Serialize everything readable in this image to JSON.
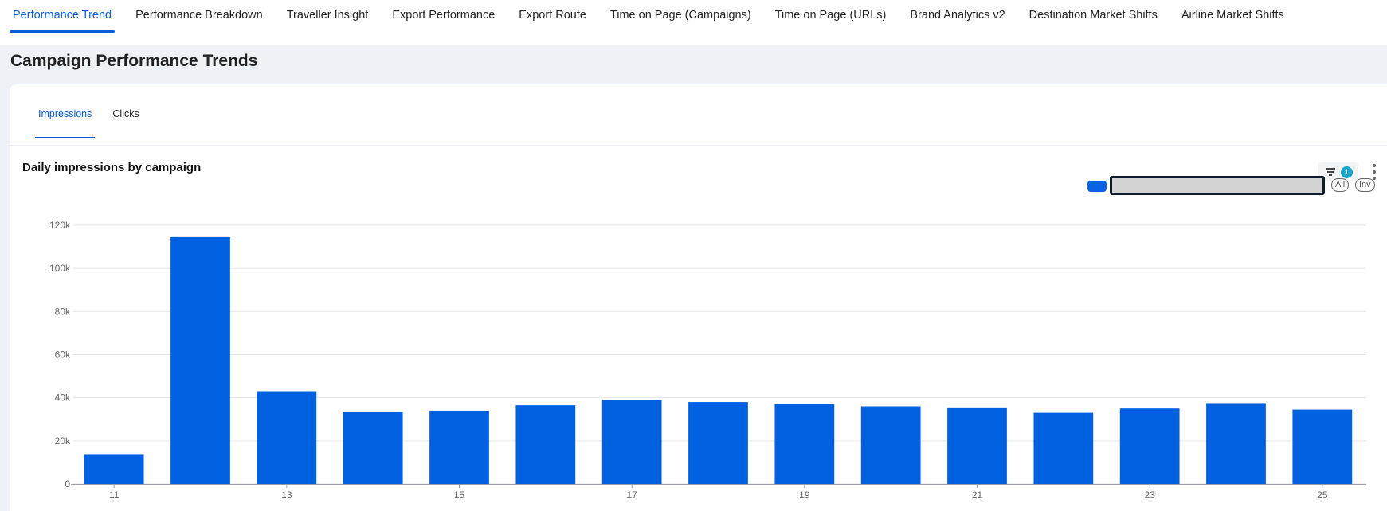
{
  "nav": {
    "tabs": [
      {
        "label": "Performance Trend",
        "active": true
      },
      {
        "label": "Performance Breakdown",
        "active": false
      },
      {
        "label": "Traveller Insight",
        "active": false
      },
      {
        "label": "Export Performance",
        "active": false
      },
      {
        "label": "Export Route",
        "active": false
      },
      {
        "label": "Time on Page (Campaigns)",
        "active": false
      },
      {
        "label": "Time on Page (URLs)",
        "active": false
      },
      {
        "label": "Brand Analytics v2",
        "active": false
      },
      {
        "label": "Destination Market Shifts",
        "active": false
      },
      {
        "label": "Airline Market Shifts",
        "active": false
      }
    ]
  },
  "page": {
    "title": "Campaign Performance Trends"
  },
  "subtabs": [
    {
      "label": "Impressions",
      "active": true
    },
    {
      "label": "Clicks",
      "active": false
    }
  ],
  "toolbar": {
    "filter_count": "1",
    "filter_icon": "filter-icon",
    "menu_icon": "kebab-menu-icon"
  },
  "legend": {
    "all_label": "All",
    "inv_label": "Inv",
    "swatch_color": "#0a63e2",
    "input_value": ""
  },
  "colors": {
    "accent": "#0a5bd8",
    "bar": "#0061e0",
    "badge": "#1aa3c9"
  },
  "chart_data": {
    "type": "bar",
    "title": "Daily impressions by campaign",
    "x": [
      11,
      12,
      13,
      14,
      15,
      16,
      17,
      18,
      19,
      20,
      21,
      22,
      23,
      24,
      25
    ],
    "x_tick_labels": [
      "11",
      "13",
      "15",
      "17",
      "19",
      "21",
      "23",
      "25"
    ],
    "series": [
      {
        "values": [
          13500,
          114500,
          43000,
          33500,
          34000,
          36500,
          39000,
          38000,
          37000,
          36000,
          35500,
          33000,
          35000,
          37500,
          34500
        ]
      }
    ],
    "ylim": [
      0,
      120000
    ],
    "y_ticks": [
      0,
      20000,
      40000,
      60000,
      80000,
      100000,
      120000
    ],
    "y_tick_labels": [
      "0",
      "20k",
      "40k",
      "60k",
      "80k",
      "100k",
      "120k"
    ],
    "grid": true
  }
}
